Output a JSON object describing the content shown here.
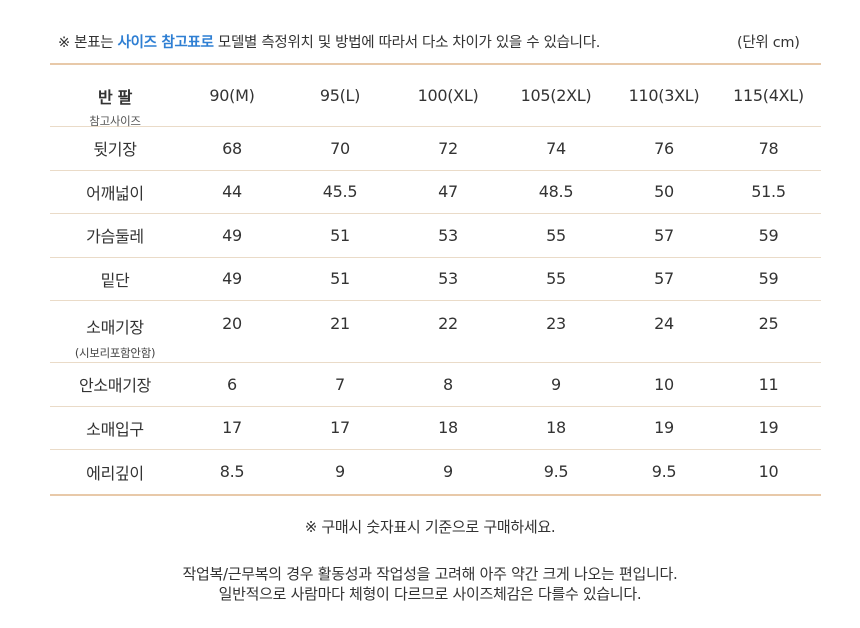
{
  "header": {
    "note_prefix": "※ 본표는 ",
    "note_highlight": "사이즈 참고표로",
    "note_suffix": " 모델별 측정위치 및 방법에 따라서 다소 차이가 있을 수 있습니다.",
    "unit": "(단위 cm)",
    "highlight_color": "#2f7fd3"
  },
  "table": {
    "corner_title": "반 팔",
    "corner_sub": "참고사이즈",
    "sizes": [
      "90(M)",
      "95(L)",
      "100(XL)",
      "105(2XL)",
      "110(3XL)",
      "115(4XL)"
    ],
    "rows": [
      {
        "label": "뒷기장",
        "sub": "",
        "values": [
          "68",
          "70",
          "72",
          "74",
          "76",
          "78"
        ]
      },
      {
        "label": "어깨넓이",
        "sub": "",
        "values": [
          "44",
          "45.5",
          "47",
          "48.5",
          "50",
          "51.5"
        ]
      },
      {
        "label": "가슴둘레",
        "sub": "",
        "values": [
          "49",
          "51",
          "53",
          "55",
          "57",
          "59"
        ]
      },
      {
        "label": "밑단",
        "sub": "",
        "values": [
          "49",
          "51",
          "53",
          "55",
          "57",
          "59"
        ]
      },
      {
        "label": "소매기장",
        "sub": "(시보리포함안함)",
        "values": [
          "20",
          "21",
          "22",
          "23",
          "24",
          "25"
        ]
      },
      {
        "label": "안소매기장",
        "sub": "",
        "values": [
          "6",
          "7",
          "8",
          "9",
          "10",
          "11"
        ]
      },
      {
        "label": "소매입구",
        "sub": "",
        "values": [
          "17",
          "17",
          "18",
          "18",
          "19",
          "19"
        ]
      },
      {
        "label": "에리깊이",
        "sub": "",
        "values": [
          "8.5",
          "9",
          "9",
          "9.5",
          "9.5",
          "10"
        ]
      }
    ],
    "border_color": "#e8c9a9"
  },
  "footer": {
    "note": "※ 구매시 숫자표시 기준으로 구매하세요.",
    "line1": "작업복/근무복의 경우 활동성과 작업성을 고려해 아주 약간 크게 나오는 편입니다.",
    "line2": "일반적으로 사람마다 체형이 다르므로 사이즈체감은 다를수 있습니다."
  }
}
